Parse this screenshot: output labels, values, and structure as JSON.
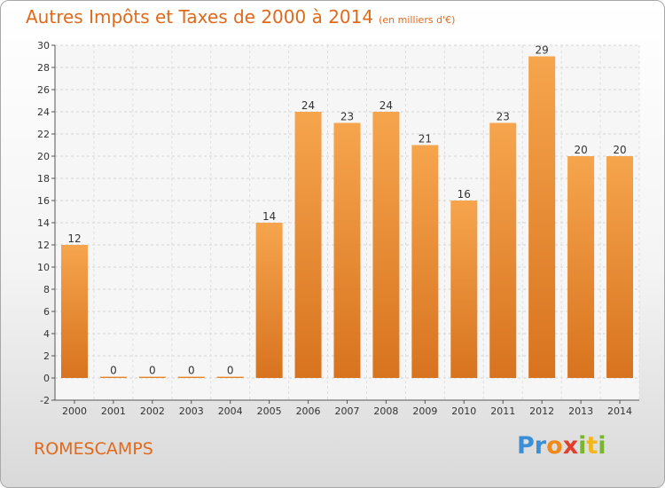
{
  "title": "Autres Impôts et Taxes de 2000 à 2014",
  "subtitle": "(en milliers d'€)",
  "commune": "ROMESCAMPS",
  "logo": {
    "letters": [
      "P",
      "r",
      "o",
      "x",
      "i",
      "t",
      "i"
    ],
    "colors": [
      "#3a8fd6",
      "#3a8fd6",
      "#f08a1c",
      "#e0402a",
      "#7ab530",
      "#f0b81c",
      "#7ab530"
    ]
  },
  "colors": {
    "bar_top": "#f6a54d",
    "bar_bottom": "#d8731f",
    "accent": "#e06a1c"
  },
  "chart_data": {
    "type": "bar",
    "categories": [
      "2000",
      "2001",
      "2002",
      "2003",
      "2004",
      "2005",
      "2006",
      "2007",
      "2008",
      "2009",
      "2010",
      "2011",
      "2012",
      "2013",
      "2014"
    ],
    "values": [
      12,
      0,
      0,
      0,
      0,
      14,
      24,
      23,
      24,
      21,
      16,
      23,
      29,
      20,
      20
    ],
    "title": "Autres Impôts et Taxes de 2000 à 2014",
    "subtitle": "(en milliers d'€)",
    "ylim": [
      -2,
      30
    ],
    "yticks": [
      -2,
      0,
      2,
      4,
      6,
      8,
      10,
      12,
      14,
      16,
      18,
      20,
      22,
      24,
      26,
      28,
      30
    ],
    "grid": true,
    "data_labels": true
  }
}
